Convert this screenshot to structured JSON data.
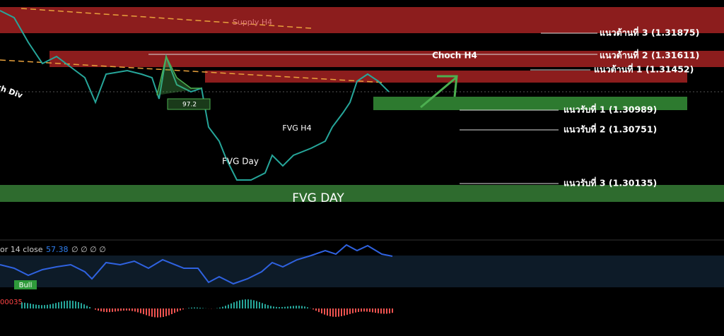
{
  "zones": {
    "supply_h4": "Supply H4",
    "choch_h4": "Choch H4",
    "fvg_h4": "FVG H4",
    "fvg_day_small": "FVG Day",
    "fvg_day": "FVG DAY",
    "ch_div": "ch Div"
  },
  "levels": [
    "แนวต้านที่ 3 (1.31875)",
    "แนวต้านที่ 2 (1.31611)",
    "แนวต้านที่ 1 (1.31452)",
    "แนวรับที่ 1 (1.30989)",
    "แนวรับที่ 2 (1.30751)",
    "แนวรับที่ 3 (1.30135)"
  ],
  "pattern_label": "97.2",
  "indicator": {
    "title": "or 14 close",
    "value": "57.38",
    "extra": "∅ ∅ ∅ ∅",
    "signal": "Bull",
    "osc_label": "00035"
  }
}
